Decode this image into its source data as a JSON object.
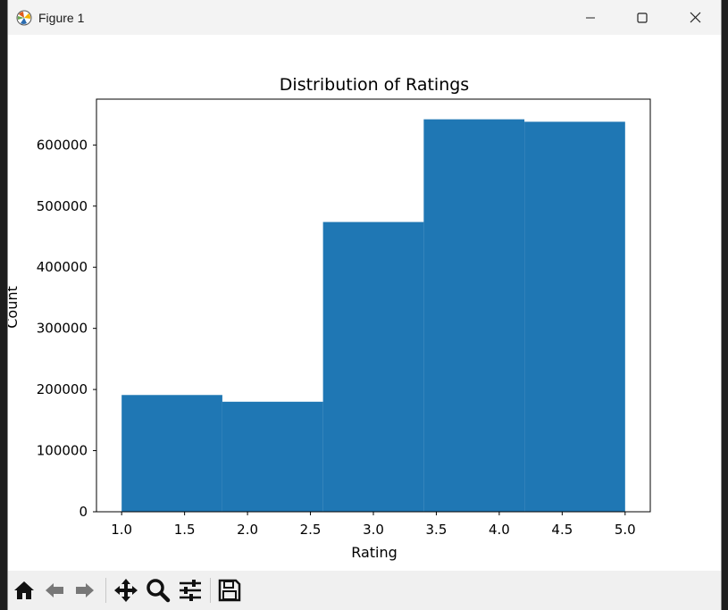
{
  "window": {
    "title": "Figure 1"
  },
  "toolbar": {
    "icons": [
      "home-icon",
      "back-icon",
      "forward-icon",
      "pan-icon",
      "zoom-icon",
      "configure-subplots-icon",
      "save-icon"
    ]
  },
  "colors": {
    "bar": "#1f77b4",
    "titlebar": "#f3f3f3",
    "toolbar": "#f0f0f0"
  },
  "chart_data": {
    "type": "bar",
    "title": "Distribution of Ratings",
    "xlabel": "Rating",
    "ylabel": "Count",
    "bins": [
      {
        "x0": 1.0,
        "x1": 1.8,
        "value": 191000
      },
      {
        "x0": 1.8,
        "x1": 2.6,
        "value": 180000
      },
      {
        "x0": 2.6,
        "x1": 3.4,
        "value": 474000
      },
      {
        "x0": 3.4,
        "x1": 4.2,
        "value": 642000
      },
      {
        "x0": 4.2,
        "x1": 5.0,
        "value": 638000
      }
    ],
    "xlim": [
      0.8,
      5.2
    ],
    "ylim": [
      0,
      675000
    ],
    "xticks": [
      "1.0",
      "1.5",
      "2.0",
      "2.5",
      "3.0",
      "3.5",
      "4.0",
      "4.5",
      "5.0"
    ],
    "yticks": [
      "0",
      "100000",
      "200000",
      "300000",
      "400000",
      "500000",
      "600000"
    ],
    "grid": false,
    "legend": false
  }
}
